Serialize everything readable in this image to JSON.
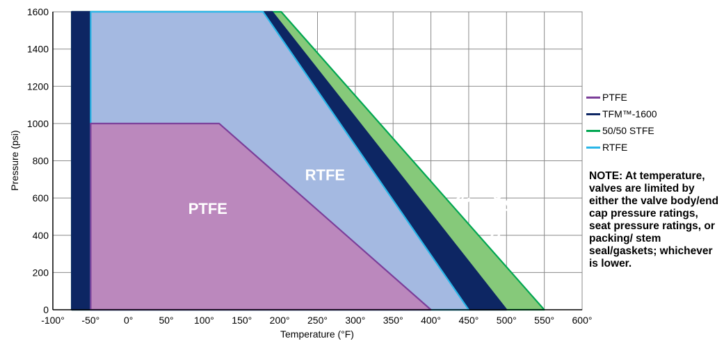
{
  "chart_data": {
    "type": "area",
    "title": "",
    "xlabel": "Temperature (°F)",
    "ylabel": "Pressure (psi)",
    "xlim": [
      -100,
      600
    ],
    "ylim": [
      0,
      1600
    ],
    "x_ticks": [
      "-100°",
      "-50°",
      "0°",
      "50°",
      "100°",
      "150°",
      "200°",
      "250°",
      "300°",
      "350°",
      "400°",
      "450°",
      "500°",
      "550°",
      "600°"
    ],
    "y_ticks": [
      "0",
      "200",
      "400",
      "600",
      "800",
      "1000",
      "1200",
      "1400",
      "1600"
    ],
    "grid": true,
    "legend_position": "right",
    "series": [
      {
        "name": "50/50 STFE",
        "color": "#00a651",
        "fill": "#86c97a",
        "points": [
          [
            -75,
            0
          ],
          [
            -75,
            1600
          ],
          [
            202,
            1600
          ],
          [
            550,
            0
          ]
        ]
      },
      {
        "name": "TFM™-1600",
        "color": "#0d2663",
        "fill": "#0d2663",
        "points": [
          [
            -75,
            0
          ],
          [
            -75,
            1600
          ],
          [
            190,
            1600
          ],
          [
            500,
            0
          ]
        ]
      },
      {
        "name": "RTFE",
        "color": "#29b6e8",
        "fill": "#a4b9e1",
        "points": [
          [
            -50,
            0
          ],
          [
            -50,
            1600
          ],
          [
            178,
            1600
          ],
          [
            450,
            0
          ]
        ]
      },
      {
        "name": "PTFE",
        "color": "#7b3e99",
        "fill": "#bb88bd",
        "points": [
          [
            -50,
            0
          ],
          [
            -50,
            1000
          ],
          [
            120,
            1000
          ],
          [
            400,
            0
          ]
        ]
      }
    ],
    "region_labels": [
      {
        "text": "PTFE",
        "x": 105,
        "y": 515,
        "size": 22,
        "rotate": 0
      },
      {
        "text": "RTFE",
        "x": 260,
        "y": 695,
        "size": 22,
        "rotate": 0
      },
      {
        "text": "TFM",
        "x": 450,
        "y": 520,
        "size": 22,
        "rotate": 49
      },
      {
        "text": "™",
        "x": 450,
        "y": 520,
        "size": 10,
        "rotate": 49
      },
      {
        "text": "-1600",
        "x": 450,
        "y": 520,
        "size": 22,
        "rotate": 49
      },
      {
        "text": "50/50 STFE",
        "x": 490,
        "y": 570,
        "size": 22,
        "rotate": 49
      }
    ]
  },
  "legend": {
    "items": [
      {
        "label": "PTFE",
        "color": "#7b3e99"
      },
      {
        "label": "TFM™-1600",
        "color": "#0d2663"
      },
      {
        "label": "50/50 STFE",
        "color": "#00a651"
      },
      {
        "label": "RTFE",
        "color": "#29b6e8"
      }
    ]
  },
  "note": "NOTE: At temperature, valves are limited by either the valve body/end cap pressure ratings, seat pressure ratings, or packing/ stem seal/gaskets; whichever is lower."
}
